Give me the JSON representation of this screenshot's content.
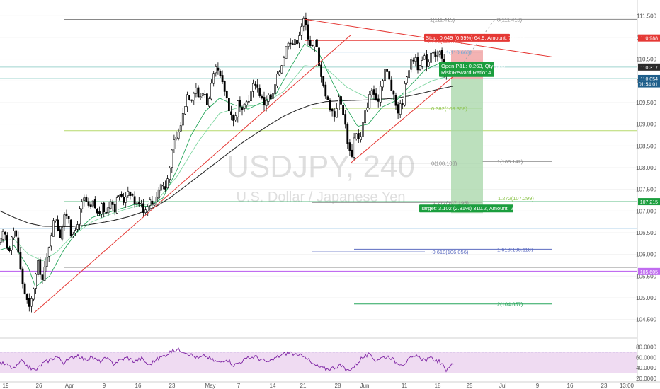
{
  "watermark": {
    "symbol": "USDJPY, 240",
    "name": "U.S. Dollar / Japanese Yen"
  },
  "colors": {
    "up": "#ffffff",
    "down": "#000000",
    "wick": "#000000",
    "trend": "#e53935",
    "ma_slow": "#2b2b2b",
    "ma_fast": "#26a65b",
    "stop_fill": "#ef9a9a",
    "target_fill": "#a5d6a7",
    "stop_box": "#e53935",
    "target_box": "#1b9e3e",
    "rsi_fill": "#e1bee7",
    "rsi_line": "#7b1fa2",
    "purple_level": "#c06cf0",
    "blue_level": "#64a8d8"
  },
  "chart_data": {
    "type": "candlestick",
    "timeframe_minutes": 240,
    "ylim": [
      104.2,
      111.7
    ],
    "y_ticks": [
      "111.500",
      "111.000",
      "110.500",
      "110.000",
      "109.500",
      "109.000",
      "108.500",
      "108.000",
      "107.500",
      "107.000",
      "106.500",
      "106.000",
      "105.500",
      "105.000",
      "104.500"
    ],
    "x_ticks": [
      "19",
      "26",
      "Apr",
      "9",
      "16",
      "23",
      "May",
      "7",
      "14",
      "21",
      "28",
      "Jun",
      "11",
      "18",
      "25",
      "Jul",
      "9",
      "16",
      "23",
      "13:00"
    ],
    "price_tags": [
      "110.988",
      "110.317",
      "110.054",
      "01:54:01",
      "107.215",
      "105.605"
    ],
    "fib_labels": [
      "1(111.415)",
      "0(111.416)",
      "0.786(110.929)",
      "1(110.663)",
      "0.382(109.368)",
      "0(108.103)",
      "1(108.142)",
      "1.272(107.299)",
      "1.272(107.195)",
      "1.618(106.118)",
      "-0.618(106.056)",
      "2(104.857)"
    ],
    "position": {
      "stop_text": "Stop: 0.649 (0.59%) 64.9, Amount: 750.13",
      "pnl_text": "Open P&L: 0.263, Qty: 385",
      "rr_text": "Risk/Reward Ratio: 4.78",
      "target_text": "Target: 3.102 (2.81%) 310.2, Amount: 2194.27",
      "entry": 110.054,
      "stop": 110.703,
      "target": 106.952
    },
    "rsi": {
      "ticks": [
        "80.0000",
        "60.0000",
        "40.0000",
        "20.0000"
      ],
      "ylim": [
        20,
        90
      ],
      "upper": 70,
      "lower": 30
    },
    "anchors": [
      [
        0,
        106.25
      ],
      [
        6,
        106.55
      ],
      [
        12,
        106.0
      ],
      [
        18,
        106.65
      ],
      [
        24,
        106.3
      ],
      [
        30,
        105.5
      ],
      [
        36,
        105.05
      ],
      [
        42,
        104.7
      ],
      [
        48,
        105.3
      ],
      [
        54,
        105.8
      ],
      [
        60,
        105.4
      ],
      [
        66,
        105.9
      ],
      [
        72,
        106.5
      ],
      [
        78,
        106.9
      ],
      [
        84,
        106.4
      ],
      [
        90,
        106.8
      ],
      [
        96,
        107.0
      ],
      [
        102,
        106.3
      ],
      [
        108,
        106.65
      ],
      [
        114,
        107.1
      ],
      [
        120,
        107.3
      ],
      [
        126,
        107.0
      ],
      [
        132,
        107.2
      ],
      [
        138,
        106.9
      ],
      [
        144,
        107.1
      ],
      [
        150,
        106.95
      ],
      [
        156,
        107.3
      ],
      [
        162,
        107.05
      ],
      [
        168,
        107.4
      ],
      [
        174,
        107.2
      ],
      [
        180,
        107.5
      ],
      [
        186,
        107.4
      ],
      [
        192,
        107.1
      ],
      [
        198,
        107.3
      ],
      [
        204,
        106.95
      ],
      [
        210,
        107.25
      ],
      [
        216,
        107.15
      ],
      [
        222,
        107.4
      ],
      [
        228,
        107.65
      ],
      [
        234,
        107.5
      ],
      [
        240,
        108.1
      ],
      [
        246,
        108.6
      ],
      [
        252,
        108.8
      ],
      [
        258,
        109.2
      ],
      [
        264,
        109.7
      ],
      [
        270,
        109.6
      ],
      [
        276,
        109.9
      ],
      [
        282,
        109.55
      ],
      [
        288,
        109.8
      ],
      [
        294,
        109.4
      ],
      [
        300,
        110.0
      ],
      [
        306,
        110.3
      ],
      [
        312,
        110.0
      ],
      [
        318,
        109.75
      ],
      [
        324,
        109.35
      ],
      [
        330,
        109.05
      ],
      [
        336,
        109.5
      ],
      [
        342,
        109.25
      ],
      [
        348,
        109.5
      ],
      [
        354,
        109.7
      ],
      [
        360,
        110.0
      ],
      [
        366,
        109.75
      ],
      [
        372,
        109.45
      ],
      [
        378,
        109.65
      ],
      [
        384,
        109.55
      ],
      [
        390,
        110.0
      ],
      [
        396,
        110.3
      ],
      [
        402,
        110.65
      ],
      [
        408,
        111.0
      ],
      [
        414,
        110.85
      ],
      [
        420,
        110.95
      ],
      [
        426,
        111.3
      ],
      [
        430,
        111.4
      ],
      [
        434,
        111.1
      ],
      [
        440,
        110.75
      ],
      [
        446,
        110.95
      ],
      [
        450,
        110.35
      ],
      [
        455,
        110.1
      ],
      [
        460,
        109.65
      ],
      [
        466,
        109.4
      ],
      [
        472,
        109.2
      ],
      [
        478,
        109.6
      ],
      [
        484,
        109.35
      ],
      [
        490,
        108.7
      ],
      [
        496,
        108.2
      ],
      [
        502,
        108.9
      ],
      [
        508,
        108.55
      ],
      [
        514,
        109.15
      ],
      [
        520,
        109.55
      ],
      [
        526,
        109.85
      ],
      [
        532,
        109.4
      ],
      [
        538,
        109.95
      ],
      [
        544,
        110.3
      ],
      [
        550,
        110.0
      ],
      [
        556,
        109.6
      ],
      [
        562,
        109.3
      ],
      [
        568,
        109.5
      ],
      [
        574,
        110.15
      ],
      [
        580,
        110.4
      ],
      [
        586,
        110.6
      ],
      [
        592,
        110.2
      ],
      [
        598,
        110.55
      ],
      [
        604,
        110.35
      ],
      [
        610,
        110.8
      ],
      [
        616,
        110.55
      ],
      [
        622,
        110.65
      ],
      [
        628,
        110.05
      ],
      [
        633,
        110.25
      ],
      [
        637,
        110.35
      ],
      [
        641,
        110.15
      ]
    ],
    "ma_slow_points": [
      [
        0,
        107.0
      ],
      [
        20,
        106.85
      ],
      [
        40,
        106.72
      ],
      [
        60,
        106.65
      ],
      [
        80,
        106.64
      ],
      [
        100,
        106.64
      ],
      [
        120,
        106.67
      ],
      [
        140,
        106.72
      ],
      [
        160,
        106.78
      ],
      [
        180,
        106.86
      ],
      [
        200,
        106.97
      ],
      [
        220,
        107.1
      ],
      [
        240,
        107.3
      ],
      [
        260,
        107.55
      ],
      [
        280,
        107.8
      ],
      [
        300,
        108.05
      ],
      [
        320,
        108.3
      ],
      [
        340,
        108.55
      ],
      [
        360,
        108.77
      ],
      [
        380,
        108.98
      ],
      [
        400,
        109.18
      ],
      [
        420,
        109.33
      ],
      [
        440,
        109.45
      ],
      [
        460,
        109.52
      ],
      [
        480,
        109.54
      ],
      [
        500,
        109.55
      ],
      [
        520,
        109.56
      ],
      [
        540,
        109.58
      ],
      [
        560,
        109.6
      ],
      [
        580,
        109.66
      ],
      [
        600,
        109.73
      ],
      [
        620,
        109.81
      ],
      [
        641,
        109.88
      ]
    ],
    "ma_fast_points": [
      [
        0,
        106.1
      ],
      [
        20,
        106.2
      ],
      [
        40,
        105.7
      ],
      [
        50,
        105.25
      ],
      [
        70,
        105.5
      ],
      [
        90,
        106.1
      ],
      [
        110,
        106.55
      ],
      [
        130,
        106.85
      ],
      [
        150,
        106.95
      ],
      [
        170,
        107.05
      ],
      [
        190,
        107.15
      ],
      [
        210,
        107.1
      ],
      [
        230,
        107.3
      ],
      [
        250,
        107.95
      ],
      [
        270,
        108.75
      ],
      [
        290,
        109.3
      ],
      [
        310,
        109.6
      ],
      [
        330,
        109.45
      ],
      [
        350,
        109.35
      ],
      [
        370,
        109.5
      ],
      [
        390,
        109.7
      ],
      [
        410,
        110.3
      ],
      [
        430,
        110.85
      ],
      [
        450,
        110.65
      ],
      [
        470,
        109.95
      ],
      [
        490,
        109.35
      ],
      [
        505,
        108.95
      ],
      [
        520,
        109.0
      ],
      [
        540,
        109.4
      ],
      [
        560,
        109.55
      ],
      [
        580,
        109.9
      ],
      [
        600,
        110.25
      ],
      [
        620,
        110.4
      ],
      [
        641,
        110.25
      ]
    ],
    "ma_green2_points": [
      [
        0,
        106.3
      ],
      [
        20,
        106.35
      ],
      [
        40,
        106.0
      ],
      [
        60,
        105.85
      ],
      [
        80,
        106.05
      ],
      [
        100,
        106.4
      ],
      [
        130,
        106.75
      ],
      [
        160,
        106.95
      ],
      [
        190,
        107.1
      ],
      [
        220,
        107.2
      ],
      [
        250,
        107.8
      ],
      [
        280,
        108.6
      ],
      [
        310,
        109.25
      ],
      [
        340,
        109.4
      ],
      [
        370,
        109.45
      ],
      [
        400,
        109.75
      ],
      [
        430,
        110.35
      ],
      [
        460,
        110.3
      ],
      [
        490,
        109.85
      ],
      [
        520,
        109.6
      ],
      [
        550,
        109.55
      ],
      [
        580,
        109.75
      ],
      [
        610,
        110.0
      ],
      [
        641,
        110.15
      ]
    ],
    "trendlines": [
      {
        "x1": 48,
        "y1": 104.65,
        "x2": 495,
        "y2": 111.05
      },
      {
        "x1": 430,
        "y1": 111.42,
        "x2": 780,
        "y2": 110.55
      },
      {
        "x1": 495,
        "y1": 108.1,
        "x2": 640,
        "y2": 110.1
      }
    ],
    "levels": [
      {
        "y": 111.415,
        "x1": 90,
        "x2": 700,
        "color": "#888888"
      },
      {
        "y": 111.416,
        "x1": 700,
        "x2": 900,
        "color": "#888888"
      },
      {
        "y": 110.929,
        "x1": 430,
        "x2": 680,
        "color": "#e53935"
      },
      {
        "y": 110.663,
        "x1": 455,
        "x2": 680,
        "color": "#64a8d8"
      },
      {
        "y": 110.317,
        "x1": 0,
        "x2": 900,
        "color": "#9fd4cf"
      },
      {
        "y": 110.054,
        "x1": 0,
        "x2": 900,
        "color": "#9fd4cf"
      },
      {
        "y": 109.368,
        "x1": 440,
        "x2": 680,
        "color": "#b5d96b"
      },
      {
        "y": 108.85,
        "x1": 90,
        "x2": 900,
        "color": "#b5d96b"
      },
      {
        "y": 108.103,
        "x1": 495,
        "x2": 680,
        "color": "#888888"
      },
      {
        "y": 108.142,
        "x1": 680,
        "x2": 780,
        "color": "#888888"
      },
      {
        "y": 107.215,
        "x1": 90,
        "x2": 900,
        "color": "#26a65b"
      },
      {
        "y": 107.195,
        "x1": 440,
        "x2": 680,
        "color": "#888888"
      },
      {
        "y": 106.6,
        "x1": 0,
        "x2": 900,
        "color": "#64a8d8"
      },
      {
        "y": 106.118,
        "x1": 500,
        "x2": 780,
        "color": "#5c6bc0"
      },
      {
        "y": 106.056,
        "x1": 440,
        "x2": 600,
        "color": "#5c6bc0"
      },
      {
        "y": 105.7,
        "x1": 90,
        "x2": 900,
        "color": "#888888"
      },
      {
        "y": 105.605,
        "x1": 0,
        "x2": 900,
        "color": "#c06cf0"
      },
      {
        "y": 104.857,
        "x1": 500,
        "x2": 780,
        "color": "#26a65b"
      },
      {
        "y": 104.6,
        "x1": 90,
        "x2": 900,
        "color": "#888888"
      }
    ],
    "rsi_anchors": [
      [
        0,
        50
      ],
      [
        10,
        45
      ],
      [
        20,
        38
      ],
      [
        30,
        52
      ],
      [
        40,
        42
      ],
      [
        50,
        35
      ],
      [
        60,
        48
      ],
      [
        70,
        55
      ],
      [
        80,
        62
      ],
      [
        90,
        50
      ],
      [
        100,
        58
      ],
      [
        110,
        65
      ],
      [
        120,
        55
      ],
      [
        130,
        60
      ],
      [
        140,
        52
      ],
      [
        150,
        58
      ],
      [
        160,
        48
      ],
      [
        170,
        55
      ],
      [
        180,
        60
      ],
      [
        190,
        52
      ],
      [
        200,
        58
      ],
      [
        210,
        45
      ],
      [
        220,
        55
      ],
      [
        230,
        62
      ],
      [
        240,
        70
      ],
      [
        250,
        75
      ],
      [
        260,
        72
      ],
      [
        270,
        65
      ],
      [
        280,
        58
      ],
      [
        290,
        63
      ],
      [
        300,
        55
      ],
      [
        310,
        50
      ],
      [
        320,
        58
      ],
      [
        330,
        45
      ],
      [
        340,
        52
      ],
      [
        350,
        58
      ],
      [
        360,
        62
      ],
      [
        370,
        55
      ],
      [
        380,
        50
      ],
      [
        390,
        60
      ],
      [
        400,
        66
      ],
      [
        410,
        70
      ],
      [
        420,
        62
      ],
      [
        430,
        65
      ],
      [
        440,
        48
      ],
      [
        450,
        42
      ],
      [
        460,
        38
      ],
      [
        470,
        40
      ],
      [
        480,
        45
      ],
      [
        490,
        35
      ],
      [
        500,
        42
      ],
      [
        510,
        58
      ],
      [
        520,
        65
      ],
      [
        530,
        55
      ],
      [
        540,
        60
      ],
      [
        550,
        62
      ],
      [
        560,
        50
      ],
      [
        570,
        48
      ],
      [
        580,
        58
      ],
      [
        590,
        62
      ],
      [
        600,
        55
      ],
      [
        610,
        58
      ],
      [
        620,
        52
      ],
      [
        630,
        36
      ],
      [
        636,
        46
      ],
      [
        641,
        44
      ]
    ]
  }
}
